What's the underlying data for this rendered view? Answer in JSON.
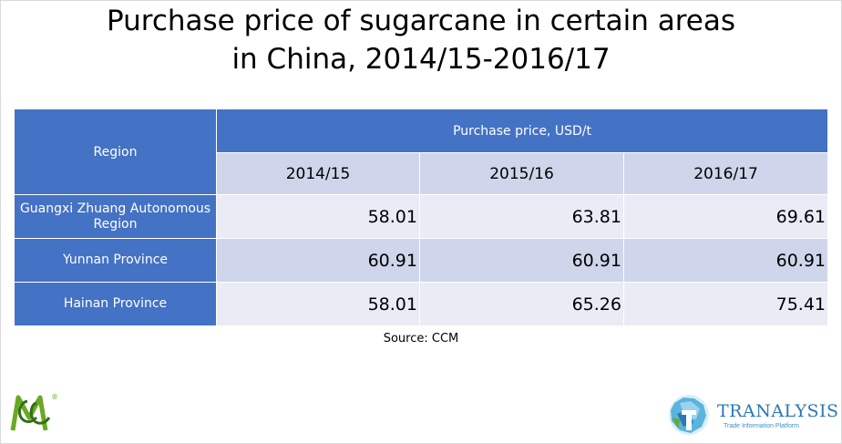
{
  "title_lines": [
    "Purchase price of sugarcane in certain areas",
    "in China, 2014/15-2016/17"
  ],
  "table": {
    "region_header": "Region",
    "price_header": "Purchase price, USD/t",
    "years": [
      "2014/15",
      "2015/16",
      "2016/17"
    ],
    "rows": [
      {
        "region": "Guangxi Zhuang Autonomous Region",
        "values": [
          "58.01",
          "63.81",
          "69.61"
        ]
      },
      {
        "region": "Yunnan Province",
        "values": [
          "60.91",
          "60.91",
          "60.91"
        ]
      },
      {
        "region": "Hainan Province",
        "values": [
          "58.01",
          "65.26",
          "75.41"
        ]
      }
    ]
  },
  "source": "Source: CCM",
  "logos": {
    "ccm_registered": "®",
    "tranalysis_name": "TRANALYSIS",
    "tranalysis_tagline": "Trade Information Platform"
  },
  "colors": {
    "header_blue": "#4472c4",
    "band_dark": "#cfd5ea",
    "band_light": "#e9ebf5",
    "ccm_green": "#6aa824",
    "tranalysis_blue": "#2a78b5"
  },
  "chart_data": {
    "type": "table",
    "title": "Purchase price of sugarcane in certain areas in China, 2014/15-2016/17",
    "columns": [
      "2014/15",
      "2015/16",
      "2016/17"
    ],
    "unit": "USD/t",
    "series": [
      {
        "name": "Guangxi Zhuang Autonomous Region",
        "values": [
          58.01,
          63.81,
          69.61
        ]
      },
      {
        "name": "Yunnan Province",
        "values": [
          60.91,
          60.91,
          60.91
        ]
      },
      {
        "name": "Hainan Province",
        "values": [
          58.01,
          65.26,
          75.41
        ]
      }
    ]
  }
}
